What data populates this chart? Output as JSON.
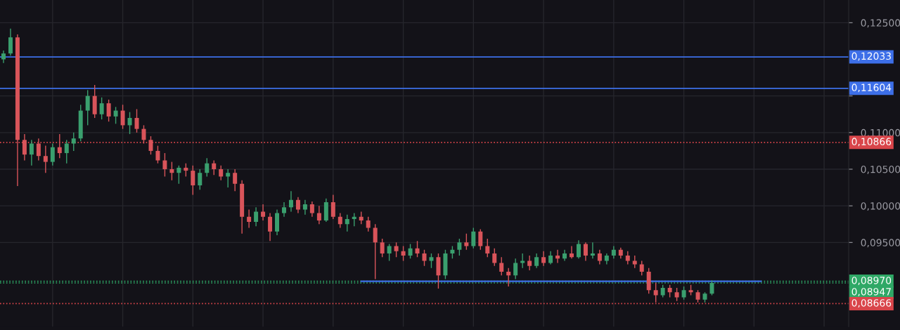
{
  "chart_data": {
    "type": "candlestick",
    "categories": [
      null,
      null,
      null,
      null,
      null,
      null,
      null,
      null,
      null,
      null,
      null,
      null,
      null,
      null,
      null,
      null,
      null,
      null,
      null,
      null,
      null,
      null,
      null,
      null,
      null,
      null,
      null,
      null,
      null,
      null,
      null,
      null,
      null,
      null,
      null,
      null,
      null,
      null,
      null,
      null,
      null,
      null,
      null,
      null,
      null,
      null,
      null,
      null,
      null,
      null,
      null,
      null,
      null,
      null,
      null,
      null,
      null,
      null,
      null,
      null,
      null,
      null,
      null,
      null,
      null,
      null,
      null,
      null,
      null,
      null,
      null,
      null,
      null,
      null,
      null,
      null,
      null,
      null,
      null,
      null,
      null,
      null,
      null,
      null,
      null,
      null,
      null,
      null,
      null,
      null,
      null,
      null,
      null,
      null,
      null,
      null,
      null,
      null,
      null,
      null,
      null,
      null,
      null,
      null,
      null,
      null,
      null,
      null,
      null,
      null,
      null,
      null,
      null,
      null,
      null,
      null,
      null,
      null,
      null,
      null,
      null
    ],
    "ohlc": [
      [
        0.12,
        0.1212,
        0.1195,
        0.1208
      ],
      [
        0.1208,
        0.1242,
        0.1205,
        0.123
      ],
      [
        0.123,
        0.1234,
        0.1027,
        0.109
      ],
      [
        0.109,
        0.1098,
        0.1062,
        0.107
      ],
      [
        0.107,
        0.109,
        0.1055,
        0.1085
      ],
      [
        0.1085,
        0.1092,
        0.1062,
        0.1068
      ],
      [
        0.1068,
        0.1082,
        0.1045,
        0.106
      ],
      [
        0.106,
        0.1085,
        0.1055,
        0.108
      ],
      [
        0.108,
        0.1098,
        0.1065,
        0.1072
      ],
      [
        0.1072,
        0.109,
        0.1058,
        0.1085
      ],
      [
        0.1085,
        0.11,
        0.1075,
        0.1092
      ],
      [
        0.1092,
        0.1138,
        0.1088,
        0.113
      ],
      [
        0.113,
        0.1158,
        0.111,
        0.115
      ],
      [
        0.115,
        0.1165,
        0.112,
        0.1125
      ],
      [
        0.1125,
        0.1148,
        0.1118,
        0.114
      ],
      [
        0.114,
        0.1145,
        0.1115,
        0.1122
      ],
      [
        0.1122,
        0.1135,
        0.1112,
        0.113
      ],
      [
        0.113,
        0.1138,
        0.1105,
        0.111
      ],
      [
        0.111,
        0.1128,
        0.1098,
        0.112
      ],
      [
        0.112,
        0.1132,
        0.11,
        0.1105
      ],
      [
        0.1105,
        0.111,
        0.1085,
        0.109
      ],
      [
        0.109,
        0.1095,
        0.107,
        0.1075
      ],
      [
        0.1075,
        0.1082,
        0.1058,
        0.1062
      ],
      [
        0.1062,
        0.1072,
        0.104,
        0.105
      ],
      [
        0.105,
        0.106,
        0.1035,
        0.1045
      ],
      [
        0.1045,
        0.1055,
        0.103,
        0.1052
      ],
      [
        0.1052,
        0.1058,
        0.104,
        0.1048
      ],
      [
        0.1048,
        0.1055,
        0.1015,
        0.1028
      ],
      [
        0.1028,
        0.105,
        0.1022,
        0.1045
      ],
      [
        0.1045,
        0.1065,
        0.104,
        0.1058
      ],
      [
        0.1058,
        0.1062,
        0.1042,
        0.105
      ],
      [
        0.105,
        0.1055,
        0.1035,
        0.104
      ],
      [
        0.104,
        0.105,
        0.1025,
        0.1045
      ],
      [
        0.1045,
        0.105,
        0.102,
        0.103
      ],
      [
        0.103,
        0.1035,
        0.0962,
        0.0985
      ],
      [
        0.0985,
        0.0995,
        0.097,
        0.0978
      ],
      [
        0.0978,
        0.0998,
        0.0972,
        0.0992
      ],
      [
        0.0992,
        0.1002,
        0.098,
        0.0985
      ],
      [
        0.0985,
        0.099,
        0.0952,
        0.0965
      ],
      [
        0.0965,
        0.0995,
        0.096,
        0.099
      ],
      [
        0.099,
        0.1005,
        0.0985,
        0.0998
      ],
      [
        0.0998,
        0.102,
        0.0992,
        0.1008
      ],
      [
        0.1008,
        0.1012,
        0.099,
        0.0995
      ],
      [
        0.0995,
        0.1008,
        0.0988,
        0.1002
      ],
      [
        0.1002,
        0.1006,
        0.0985,
        0.099
      ],
      [
        0.099,
        0.1,
        0.0975,
        0.098
      ],
      [
        0.098,
        0.101,
        0.0978,
        0.1005
      ],
      [
        0.1005,
        0.1015,
        0.0982,
        0.0985
      ],
      [
        0.0985,
        0.099,
        0.097,
        0.0975
      ],
      [
        0.0975,
        0.0988,
        0.0965,
        0.0982
      ],
      [
        0.0982,
        0.099,
        0.0972,
        0.0985
      ],
      [
        0.0985,
        0.0992,
        0.0975,
        0.098
      ],
      [
        0.098,
        0.0985,
        0.0965,
        0.097
      ],
      [
        0.097,
        0.0975,
        0.09,
        0.095
      ],
      [
        0.095,
        0.0955,
        0.093,
        0.0935
      ],
      [
        0.0935,
        0.0948,
        0.0925,
        0.0945
      ],
      [
        0.0945,
        0.095,
        0.093,
        0.0938
      ],
      [
        0.0938,
        0.0945,
        0.0925,
        0.0932
      ],
      [
        0.0932,
        0.0948,
        0.0928,
        0.0942
      ],
      [
        0.0942,
        0.0952,
        0.093,
        0.0935
      ],
      [
        0.0935,
        0.094,
        0.0918,
        0.0925
      ],
      [
        0.0925,
        0.0935,
        0.0915,
        0.093
      ],
      [
        0.093,
        0.0935,
        0.0887,
        0.0905
      ],
      [
        0.0905,
        0.094,
        0.09,
        0.0935
      ],
      [
        0.0935,
        0.0945,
        0.0928,
        0.094
      ],
      [
        0.094,
        0.0955,
        0.0932,
        0.095
      ],
      [
        0.095,
        0.0962,
        0.094,
        0.0945
      ],
      [
        0.0945,
        0.097,
        0.0942,
        0.0965
      ],
      [
        0.0965,
        0.0968,
        0.094,
        0.0945
      ],
      [
        0.0945,
        0.0955,
        0.093,
        0.0935
      ],
      [
        0.0935,
        0.0942,
        0.0918,
        0.0922
      ],
      [
        0.0922,
        0.093,
        0.0905,
        0.091
      ],
      [
        0.091,
        0.0915,
        0.089,
        0.0905
      ],
      [
        0.0905,
        0.0928,
        0.09,
        0.0922
      ],
      [
        0.0922,
        0.0935,
        0.0915,
        0.0925
      ],
      [
        0.0925,
        0.0932,
        0.0912,
        0.0918
      ],
      [
        0.0918,
        0.0935,
        0.0915,
        0.093
      ],
      [
        0.093,
        0.0938,
        0.0918,
        0.0922
      ],
      [
        0.0922,
        0.0938,
        0.092,
        0.0932
      ],
      [
        0.0932,
        0.094,
        0.0922,
        0.0928
      ],
      [
        0.0928,
        0.094,
        0.0925,
        0.0935
      ],
      [
        0.0935,
        0.0945,
        0.0928,
        0.093
      ],
      [
        0.093,
        0.0953,
        0.0928,
        0.0948
      ],
      [
        0.0948,
        0.095,
        0.0925,
        0.0932
      ],
      [
        0.0932,
        0.095,
        0.0928,
        0.0935
      ],
      [
        0.0935,
        0.094,
        0.092,
        0.0925
      ],
      [
        0.0925,
        0.0935,
        0.092,
        0.0932
      ],
      [
        0.0932,
        0.0945,
        0.0928,
        0.094
      ],
      [
        0.094,
        0.0943,
        0.0928,
        0.0932
      ],
      [
        0.0932,
        0.0938,
        0.092,
        0.0925
      ],
      [
        0.0925,
        0.0932,
        0.0915,
        0.092
      ],
      [
        0.092,
        0.0925,
        0.0905,
        0.091
      ],
      [
        0.091,
        0.0915,
        0.088,
        0.0885
      ],
      [
        0.0885,
        0.0895,
        0.0868,
        0.0878
      ],
      [
        0.0878,
        0.0892,
        0.0875,
        0.0888
      ],
      [
        0.0888,
        0.0892,
        0.0875,
        0.0882
      ],
      [
        0.0882,
        0.0888,
        0.087,
        0.0875
      ],
      [
        0.0875,
        0.089,
        0.0872,
        0.0885
      ],
      [
        0.0885,
        0.0892,
        0.0878,
        0.0882
      ],
      [
        0.0882,
        0.0885,
        0.0868,
        0.0872
      ],
      [
        0.0872,
        0.0882,
        0.0868,
        0.088
      ],
      [
        0.088,
        0.0898,
        0.0878,
        0.08947
      ],
      null,
      null,
      null,
      null,
      null,
      null,
      null,
      null,
      null,
      null,
      null,
      null,
      null,
      null,
      null,
      null,
      null,
      null,
      null
    ],
    "colors": [
      "#3a9f6e",
      "#3a9f6e",
      "#d9545a",
      "#d9545a",
      "#3a9f6e",
      "#d9545a",
      "#d9545a",
      "#3a9f6e",
      "#d9545a",
      "#3a9f6e",
      "#3a9f6e",
      "#3a9f6e",
      "#3a9f6e",
      "#d9545a",
      "#3a9f6e",
      "#d9545a",
      "#3a9f6e",
      "#d9545a",
      "#3a9f6e",
      "#d9545a",
      "#d9545a",
      "#d9545a",
      "#d9545a",
      "#d9545a",
      "#d9545a",
      "#3a9f6e",
      "#d9545a",
      "#d9545a",
      "#3a9f6e",
      "#3a9f6e",
      "#d9545a",
      "#d9545a",
      "#3a9f6e",
      "#d9545a",
      "#d9545a",
      "#d9545a",
      "#3a9f6e",
      "#d9545a",
      "#d9545a",
      "#3a9f6e",
      "#3a9f6e",
      "#3a9f6e",
      "#d9545a",
      "#3a9f6e",
      "#d9545a",
      "#d9545a",
      "#3a9f6e",
      "#d9545a",
      "#d9545a",
      "#3a9f6e",
      "#3a9f6e",
      "#d9545a",
      "#d9545a",
      "#d9545a",
      "#d9545a",
      "#3a9f6e",
      "#d9545a",
      "#d9545a",
      "#3a9f6e",
      "#d9545a",
      "#d9545a",
      "#3a9f6e",
      "#d9545a",
      "#3a9f6e",
      "#3a9f6e",
      "#3a9f6e",
      "#d9545a",
      "#3a9f6e",
      "#d9545a",
      "#d9545a",
      "#d9545a",
      "#d9545a",
      "#d9545a",
      "#3a9f6e",
      "#3a9f6e",
      "#d9545a",
      "#3a9f6e",
      "#d9545a",
      "#3a9f6e",
      "#d9545a",
      "#3a9f6e",
      "#d9545a",
      "#3a9f6e",
      "#d9545a",
      "#3a9f6e",
      "#d9545a",
      "#3a9f6e",
      "#3a9f6e",
      "#d9545a",
      "#d9545a",
      "#d9545a",
      "#d9545a",
      "#d9545a",
      "#d9545a",
      "#3a9f6e",
      "#d9545a",
      "#d9545a",
      "#3a9f6e",
      "#d9545a",
      "#d9545a",
      "#3a9f6e",
      "#3a9f6e",
      null,
      null,
      null,
      null,
      null,
      null,
      null,
      null,
      null,
      null,
      null,
      null,
      null,
      null,
      null,
      null,
      null,
      null,
      null
    ],
    "series": [
      {
        "type": "line",
        "color": "#3d6fe8",
        "values": [
          null,
          null,
          null,
          null,
          null,
          null,
          null,
          null,
          null,
          null,
          null,
          null,
          null,
          null,
          null,
          null,
          null,
          null,
          null,
          null,
          null,
          null,
          null,
          null,
          null,
          null,
          null,
          null,
          null,
          null,
          null,
          null,
          null,
          null,
          null,
          null,
          null,
          null,
          null,
          null,
          null,
          null,
          null,
          null,
          null,
          null,
          null,
          null,
          null,
          null,
          null,
          0.0897,
          0.0897,
          0.0897,
          0.0897,
          0.0897,
          0.0897,
          0.0897,
          0.0897,
          0.0897,
          0.0897,
          0.0897,
          0.0897,
          0.0897,
          0.0897,
          0.0897,
          0.0897,
          0.0897,
          0.0897,
          0.0897,
          0.0897,
          0.0897,
          0.0897,
          0.0897,
          0.0897,
          0.0897,
          0.0897,
          0.0897,
          0.0897,
          0.0897,
          0.0897,
          0.0897,
          0.0897,
          0.0897,
          0.0897,
          0.0897,
          0.0897,
          0.0897,
          0.0897,
          0.0897,
          0.0897,
          0.0897,
          0.0897,
          0.0897,
          0.0897,
          0.0897,
          0.0897,
          0.0897,
          0.0897,
          0.0897,
          0.0897,
          0.0897,
          0.0897,
          0.0897,
          0.0897,
          0.0897,
          0.0897,
          0.0897,
          0.0897,
          null,
          null,
          null,
          null,
          null,
          null,
          null,
          null,
          null,
          null,
          null,
          null
        ]
      }
    ],
    "ylim": [
      0.0835,
      0.1281
    ],
    "yticks": [
      {
        "value": 0.095,
        "label": "0,09500"
      },
      {
        "value": 0.1,
        "label": "0,10000"
      },
      {
        "value": 0.105,
        "label": "0,10500"
      },
      {
        "value": 0.11,
        "label": "0,11000"
      },
      {
        "value": 0.115,
        "label": null
      },
      {
        "value": 0.125,
        "label": "0,12500"
      }
    ],
    "tick_labels": "y",
    "grid": true,
    "ref_lines": [
      {
        "axis": "y",
        "value": 0.12033,
        "label": "0,12033",
        "color": "#3d6fe8",
        "line_style": "solid"
      },
      {
        "axis": "y",
        "value": 0.11604,
        "label": "0,11604",
        "color": "#3d6fe8",
        "line_style": "solid"
      },
      {
        "axis": "y",
        "value": 0.10866,
        "label": "0,10866",
        "color": "#d9454a",
        "line_style": "dotted"
      },
      {
        "axis": "y",
        "value": 0.0897,
        "label": "0,08970",
        "color": "#2fa866",
        "line_style": "dotted"
      },
      {
        "axis": "y",
        "value": 0.08947,
        "label": "0,08947",
        "color": "#2fa866",
        "line_style": "dotted"
      },
      {
        "axis": "y",
        "value": 0.08666,
        "label": "0,08666",
        "color": "#d9454a",
        "line_style": "dotted"
      }
    ]
  }
}
